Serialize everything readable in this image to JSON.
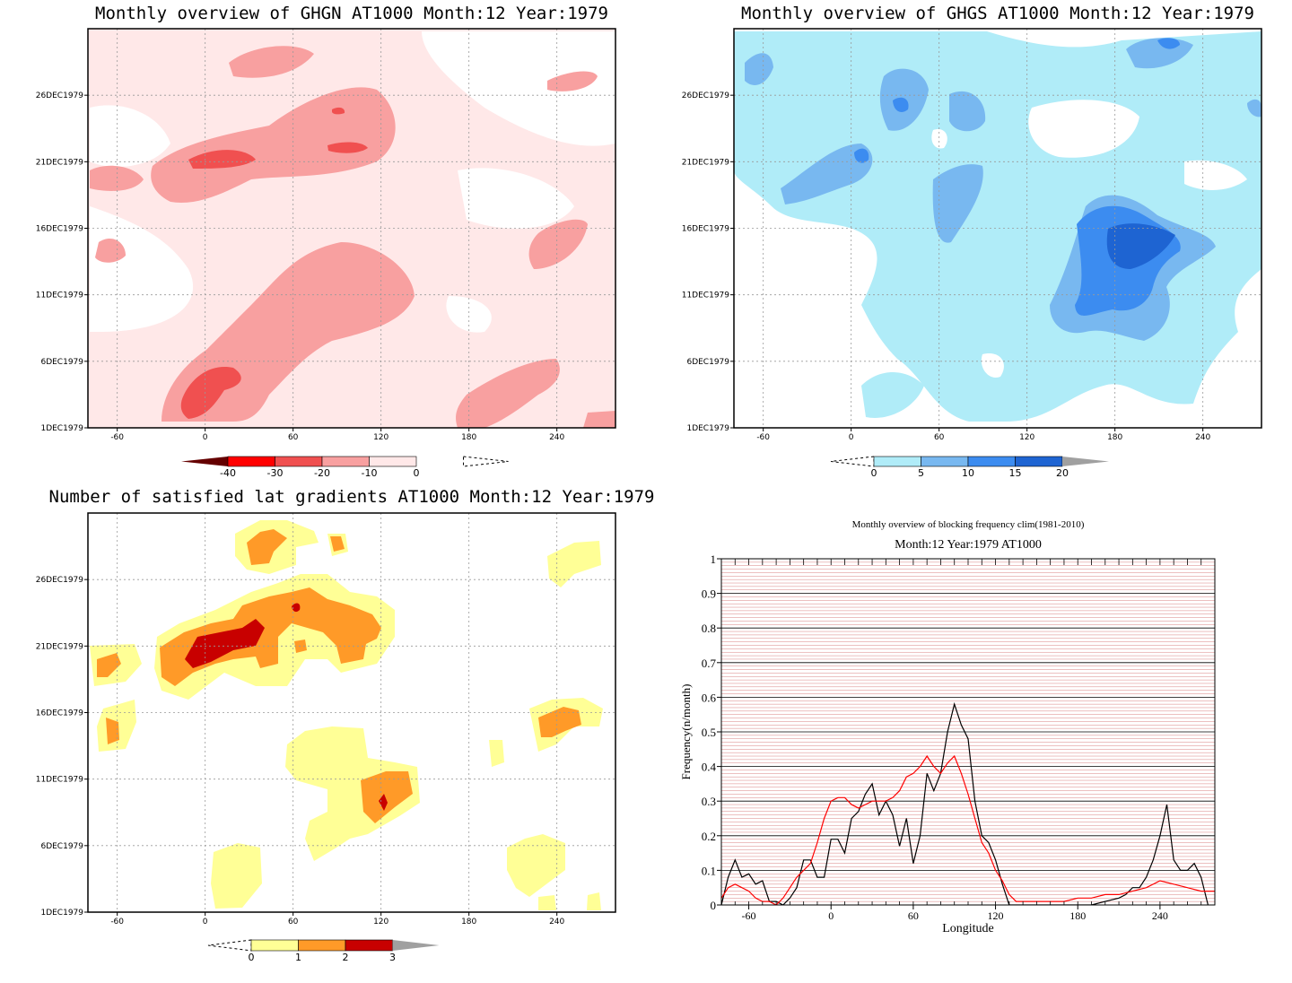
{
  "panels": {
    "ghgn": {
      "title": "Monthly overview of GHGN AT1000 Month:12 Year:1979",
      "x_ticks": [
        "-60",
        "0",
        "60",
        "120",
        "180",
        "240"
      ],
      "y_ticks": [
        "1DEC1979",
        "6DEC1979",
        "11DEC1979",
        "16DEC1979",
        "21DEC1979",
        "26DEC1979"
      ],
      "colorbar": {
        "labels": [
          "-40",
          "-30",
          "-20",
          "-10",
          "0"
        ],
        "colors": [
          "#650000",
          "#ff0000",
          "#f05050",
          "#f8a0a0",
          "#ffe8e8"
        ]
      },
      "colors": {
        "light": "#ffe8e8",
        "mid": "#f8a0a0",
        "dark": "#f05050",
        "red": "#ff0000"
      }
    },
    "ghgs": {
      "title": "Monthly overview of GHGS AT1000 Month:12 Year:1979",
      "x_ticks": [
        "-60",
        "0",
        "60",
        "120",
        "180",
        "240"
      ],
      "y_ticks": [
        "1DEC1979",
        "6DEC1979",
        "11DEC1979",
        "16DEC1979",
        "21DEC1979",
        "26DEC1979"
      ],
      "colorbar": {
        "labels": [
          "0",
          "5",
          "10",
          "15",
          "20"
        ],
        "colors": [
          "#b0ecf8",
          "#78b8f0",
          "#3c8cf0",
          "#1e64d2"
        ]
      },
      "colors": {
        "light": "#b0ecf8",
        "mid": "#78b8f0",
        "dark": "#3c8cf0",
        "deep": "#1e64d2"
      }
    },
    "gradients": {
      "title": "Number of satisfied lat gradients AT1000 Month:12 Year:1979",
      "x_ticks": [
        "-60",
        "0",
        "60",
        "120",
        "180",
        "240"
      ],
      "y_ticks": [
        "1DEC1979",
        "6DEC1979",
        "11DEC1979",
        "16DEC1979",
        "21DEC1979",
        "26DEC1979"
      ],
      "colorbar": {
        "labels": [
          "0",
          "1",
          "2",
          "3"
        ],
        "colors": [
          "#ffff96",
          "#ff9a28",
          "#c80000"
        ]
      },
      "colors": {
        "one": "#ffff96",
        "two": "#ff9a28",
        "three": "#c80000"
      }
    },
    "frequency": {
      "title": "Monthly overview of blocking frequency clim(1981-2010)",
      "subtitle": "Month:12 Year:1979  AT1000",
      "xlabel": "Longitude",
      "ylabel": "Frequency(n/month)",
      "x_ticks": [
        "-60",
        "0",
        "60",
        "120",
        "180",
        "240"
      ],
      "y_ticks": [
        "0",
        "0.1",
        "0.2",
        "0.3",
        "0.4",
        "0.5",
        "0.6",
        "0.7",
        "0.8",
        "0.9",
        "1"
      ]
    }
  },
  "chart_data": [
    {
      "type": "heatmap",
      "title": "Monthly overview of GHGN AT1000 Month:12 Year:1979",
      "x_range": [
        -80,
        280
      ],
      "y_range": [
        "1DEC1979",
        "31DEC1979"
      ],
      "colorbar_levels": [
        -40,
        -30,
        -20,
        -10,
        0
      ]
    },
    {
      "type": "heatmap",
      "title": "Monthly overview of GHGS AT1000 Month:12 Year:1979",
      "x_range": [
        -80,
        280
      ],
      "y_range": [
        "1DEC1979",
        "31DEC1979"
      ],
      "colorbar_levels": [
        0,
        5,
        10,
        15,
        20
      ]
    },
    {
      "type": "heatmap",
      "title": "Number of satisfied lat gradients AT1000 Month:12 Year:1979",
      "x_range": [
        -80,
        280
      ],
      "y_range": [
        "1DEC1979",
        "31DEC1979"
      ],
      "colorbar_levels": [
        0,
        1,
        2,
        3
      ]
    },
    {
      "type": "line",
      "title": "Monthly overview of blocking frequency clim(1981-2010)",
      "subtitle": "Month:12 Year:1979  AT1000",
      "xlabel": "Longitude",
      "ylabel": "Frequency(n/month)",
      "xlim": [
        -80,
        280
      ],
      "ylim": [
        0,
        1
      ],
      "series": [
        {
          "color": "#000000",
          "x": [
            -80,
            -75,
            -70,
            -65,
            -60,
            -55,
            -50,
            -45,
            -40,
            -35,
            -30,
            -25,
            -20,
            -15,
            -10,
            -5,
            0,
            5,
            10,
            15,
            20,
            25,
            30,
            35,
            40,
            45,
            50,
            55,
            60,
            65,
            70,
            75,
            80,
            85,
            90,
            95,
            100,
            105,
            110,
            115,
            120,
            125,
            130,
            135,
            140,
            150,
            160,
            170,
            180,
            190,
            200,
            210,
            215,
            220,
            225,
            230,
            235,
            240,
            245,
            250,
            255,
            260,
            265,
            270,
            275
          ],
          "y": [
            0,
            0.08,
            0.13,
            0.08,
            0.09,
            0.06,
            0.07,
            0.01,
            0.01,
            0,
            0.02,
            0.05,
            0.13,
            0.13,
            0.08,
            0.08,
            0.19,
            0.19,
            0.15,
            0.25,
            0.27,
            0.32,
            0.35,
            0.26,
            0.3,
            0.26,
            0.17,
            0.25,
            0.12,
            0.2,
            0.38,
            0.33,
            0.38,
            0.5,
            0.58,
            0.52,
            0.48,
            0.3,
            0.2,
            0.18,
            0.13,
            0.06,
            0,
            0,
            0,
            0,
            0,
            0,
            0,
            0,
            0.01,
            0.02,
            0.03,
            0.05,
            0.05,
            0.08,
            0.13,
            0.2,
            0.29,
            0.13,
            0.1,
            0.1,
            0.12,
            0.08,
            0
          ]
        },
        {
          "color": "#ff0000",
          "x": [
            -80,
            -75,
            -70,
            -65,
            -60,
            -55,
            -50,
            -45,
            -40,
            -35,
            -30,
            -25,
            -20,
            -15,
            -10,
            -5,
            0,
            5,
            10,
            15,
            20,
            25,
            30,
            35,
            40,
            45,
            50,
            55,
            60,
            65,
            70,
            75,
            80,
            85,
            90,
            95,
            100,
            105,
            110,
            115,
            120,
            125,
            130,
            135,
            140,
            150,
            160,
            170,
            180,
            190,
            200,
            210,
            220,
            230,
            240,
            250,
            260,
            270,
            280
          ],
          "y": [
            0.02,
            0.05,
            0.06,
            0.05,
            0.04,
            0.02,
            0.01,
            0.01,
            0,
            0.02,
            0.05,
            0.08,
            0.1,
            0.12,
            0.18,
            0.25,
            0.3,
            0.31,
            0.31,
            0.29,
            0.28,
            0.29,
            0.3,
            0.3,
            0.3,
            0.31,
            0.33,
            0.37,
            0.38,
            0.4,
            0.43,
            0.4,
            0.38,
            0.41,
            0.43,
            0.38,
            0.32,
            0.25,
            0.18,
            0.15,
            0.1,
            0.07,
            0.03,
            0.01,
            0.01,
            0.01,
            0.01,
            0.01,
            0.02,
            0.02,
            0.03,
            0.03,
            0.04,
            0.05,
            0.07,
            0.06,
            0.05,
            0.04,
            0.04
          ]
        }
      ]
    }
  ]
}
